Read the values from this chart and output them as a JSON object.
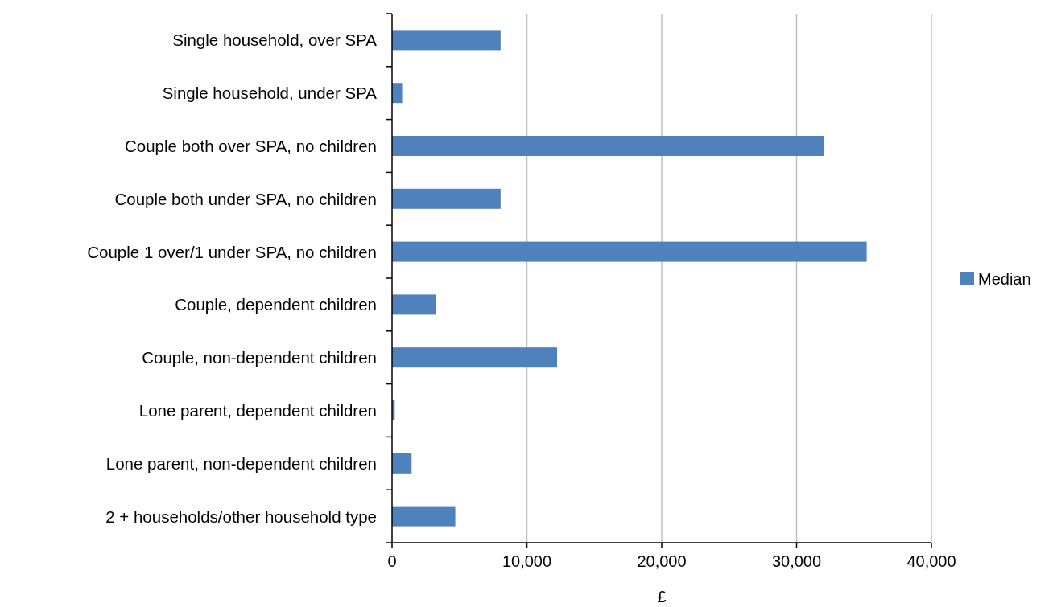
{
  "chart_data": {
    "type": "bar",
    "orientation": "horizontal",
    "categories": [
      "Single household, over SPA",
      "Single household, under SPA",
      "Couple both over SPA, no children",
      "Couple both under SPA, no children",
      "Couple 1 over/1 under SPA, no children",
      "Couple, dependent children",
      "Couple, non-dependent children",
      "Lone parent, dependent children",
      "Lone parent, non-dependent children",
      "2 + households/other household type"
    ],
    "series": [
      {
        "name": "Median",
        "color": "#4f81bd",
        "values": [
          8050,
          750,
          32000,
          8050,
          35200,
          3280,
          12240,
          200,
          1450,
          4690
        ]
      }
    ],
    "xlabel": "£",
    "xlim": [
      0,
      40000
    ],
    "xticks": [
      0,
      {
        "value": 10000,
        "label": "10,000"
      },
      {
        "value": 20000,
        "label": "20,000"
      },
      {
        "value": 30000,
        "label": "30,000"
      },
      {
        "value": 40000,
        "label": "40,000"
      }
    ],
    "grid": "x",
    "legend": "right"
  }
}
